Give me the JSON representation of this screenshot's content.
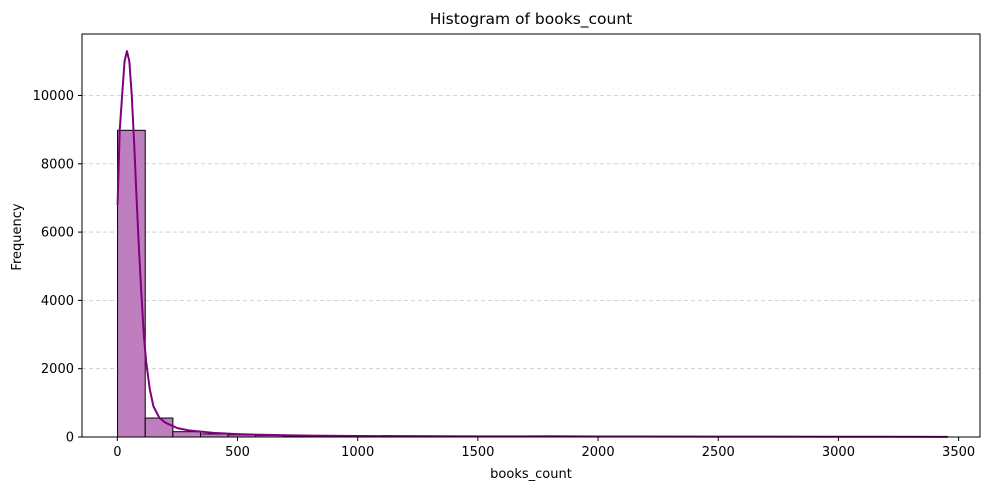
{
  "chart_data": {
    "type": "bar",
    "title": "Histogram of books_count",
    "xlabel": "books_count",
    "ylabel": "Frequency",
    "xlim": [
      -147,
      3589
    ],
    "ylim": [
      0,
      11800
    ],
    "xticks": [
      0,
      500,
      1000,
      1500,
      2000,
      2500,
      3000,
      3500
    ],
    "yticks": [
      0,
      2000,
      4000,
      6000,
      8000,
      10000
    ],
    "grid": "y-dashed",
    "bar_color": "#bf7fbf",
    "edge_color": "#000000",
    "kde_color": "#800080",
    "bins": {
      "edges": [
        1,
        116,
        231,
        346,
        461,
        576,
        691,
        806,
        921,
        1036,
        1151,
        1266,
        1381,
        1496,
        1611,
        1726,
        1841,
        1956,
        2071,
        2186,
        2301,
        2416,
        2531,
        2646,
        2761,
        2876,
        2991,
        3106,
        3221,
        3336,
        3455
      ],
      "values": [
        8980,
        555,
        155,
        90,
        65,
        45,
        30,
        22,
        18,
        14,
        12,
        10,
        8,
        7,
        6,
        7,
        5,
        4,
        4,
        3,
        3,
        3,
        3,
        3,
        2,
        2,
        2,
        2,
        2,
        2
      ]
    },
    "kde": {
      "x": [
        1,
        10,
        20,
        30,
        40,
        50,
        60,
        70,
        80,
        90,
        100,
        110,
        120,
        135,
        150,
        175,
        200,
        250,
        300,
        400,
        500,
        600,
        700,
        800,
        1000,
        1200,
        1500,
        1700,
        1800,
        2000,
        2500,
        3000,
        3455
      ],
      "y": [
        6800,
        9000,
        10000,
        11000,
        11300,
        11000,
        10000,
        8600,
        7000,
        5500,
        4200,
        3000,
        2200,
        1400,
        900,
        560,
        420,
        260,
        190,
        120,
        85,
        65,
        50,
        40,
        30,
        25,
        20,
        18,
        22,
        15,
        12,
        8,
        5
      ]
    }
  }
}
